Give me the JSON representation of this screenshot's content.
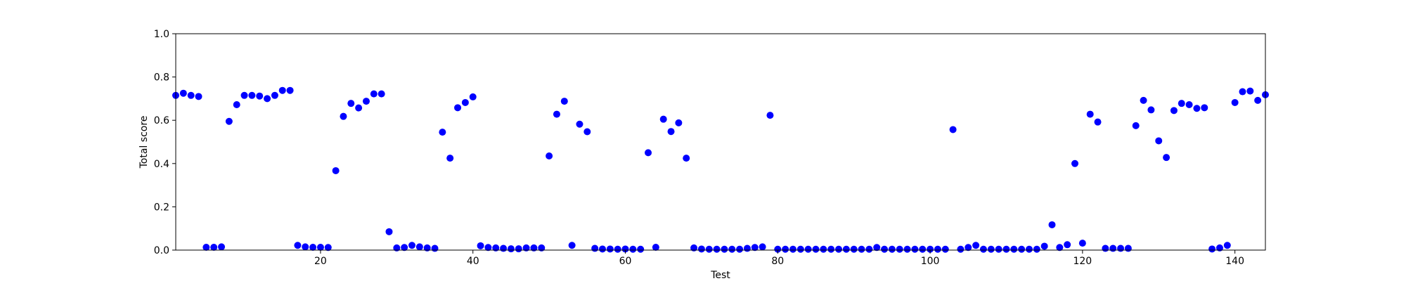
{
  "chart_data": {
    "type": "scatter",
    "title": "",
    "xlabel": "Test",
    "ylabel": "Total score",
    "xlim": [
      1,
      144
    ],
    "ylim": [
      0.0,
      1.0
    ],
    "xticks": [
      20,
      40,
      60,
      80,
      100,
      120,
      140
    ],
    "xtick_labels": [
      "20",
      "40",
      "60",
      "80",
      "100",
      "120",
      "140"
    ],
    "yticks": [
      0.0,
      0.2,
      0.4,
      0.6,
      0.8,
      1.0
    ],
    "ytick_labels": [
      "0.0",
      "0.2",
      "0.4",
      "0.6",
      "0.8",
      "1.0"
    ],
    "grid": false,
    "marker_color": "#0000ff",
    "series": [
      {
        "x": [
          1,
          2,
          3,
          4,
          5,
          6,
          7,
          8,
          9,
          10,
          11,
          12,
          13,
          14,
          15,
          16,
          17,
          18,
          19,
          20,
          21,
          22,
          23,
          24,
          25,
          26,
          27,
          28,
          29,
          30,
          31,
          32,
          33,
          34,
          35,
          36,
          37,
          38,
          39,
          40,
          41,
          42,
          43,
          44,
          45,
          46,
          47,
          48,
          49,
          50,
          51,
          52,
          53,
          54,
          55,
          56,
          57,
          58,
          59,
          60,
          61,
          62,
          63,
          64,
          65,
          66,
          67,
          68,
          69,
          70,
          71,
          72,
          73,
          74,
          75,
          76,
          77,
          78,
          79,
          80,
          81,
          82,
          83,
          84,
          85,
          86,
          87,
          88,
          89,
          90,
          91,
          92,
          93,
          94,
          95,
          96,
          97,
          98,
          99,
          100,
          101,
          102,
          103,
          104,
          105,
          106,
          107,
          108,
          109,
          110,
          111,
          112,
          113,
          114,
          115,
          116,
          117,
          118,
          119,
          120,
          121,
          122,
          123,
          124,
          125,
          126,
          127,
          128,
          129,
          130,
          131,
          132,
          133,
          134,
          135,
          136,
          137,
          138,
          139,
          140,
          141,
          142,
          143,
          144
        ],
        "y": [
          0.715,
          0.725,
          0.715,
          0.71,
          0.013,
          0.013,
          0.015,
          0.595,
          0.672,
          0.715,
          0.715,
          0.712,
          0.7,
          0.715,
          0.738,
          0.738,
          0.022,
          0.015,
          0.013,
          0.013,
          0.012,
          0.367,
          0.618,
          0.678,
          0.657,
          0.688,
          0.722,
          0.722,
          0.085,
          0.01,
          0.012,
          0.022,
          0.015,
          0.01,
          0.008,
          0.545,
          0.425,
          0.658,
          0.682,
          0.708,
          0.02,
          0.012,
          0.01,
          0.008,
          0.006,
          0.006,
          0.01,
          0.01,
          0.01,
          0.435,
          0.628,
          0.688,
          0.022,
          0.582,
          0.547,
          0.008,
          0.005,
          0.005,
          0.004,
          0.005,
          0.004,
          0.004,
          0.45,
          0.013,
          0.605,
          0.548,
          0.588,
          0.425,
          0.01,
          0.005,
          0.004,
          0.004,
          0.004,
          0.004,
          0.004,
          0.008,
          0.012,
          0.015,
          0.623,
          0.004,
          0.004,
          0.004,
          0.004,
          0.004,
          0.004,
          0.004,
          0.004,
          0.004,
          0.004,
          0.004,
          0.004,
          0.004,
          0.012,
          0.004,
          0.004,
          0.004,
          0.004,
          0.004,
          0.004,
          0.004,
          0.004,
          0.004,
          0.557,
          0.004,
          0.012,
          0.022,
          0.004,
          0.004,
          0.004,
          0.004,
          0.004,
          0.004,
          0.004,
          0.004,
          0.018,
          0.117,
          0.012,
          0.025,
          0.4,
          0.032,
          0.628,
          0.592,
          0.008,
          0.008,
          0.008,
          0.008,
          0.575,
          0.692,
          0.648,
          0.505,
          0.428,
          0.645,
          0.678,
          0.672,
          0.655,
          0.658,
          0.005,
          0.01,
          0.022,
          0.682,
          0.732,
          0.735,
          0.692,
          0.718
        ]
      }
    ]
  }
}
